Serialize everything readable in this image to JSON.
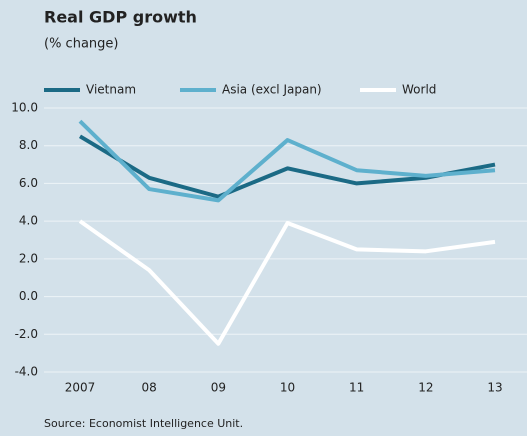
{
  "chart_data": {
    "type": "line",
    "title": "Real GDP growth",
    "subtitle": "(% change)",
    "source": "Source: Economist Intelligence Unit.",
    "categories": [
      "2007",
      "08",
      "09",
      "10",
      "11",
      "12",
      "13"
    ],
    "series": [
      {
        "name": "Vietnam",
        "color": "#1b6a85",
        "values": [
          8.5,
          6.3,
          5.3,
          6.8,
          6.0,
          6.3,
          7.0
        ]
      },
      {
        "name": "Asia (excl Japan)",
        "color": "#5eb0cd",
        "values": [
          9.3,
          5.7,
          5.1,
          8.3,
          6.7,
          6.4,
          6.7
        ]
      },
      {
        "name": "World",
        "color": "#ffffff",
        "values": [
          4.0,
          1.4,
          -2.5,
          3.9,
          2.5,
          2.4,
          2.9
        ]
      }
    ],
    "ylim": [
      -4,
      10
    ],
    "yticks": [
      {
        "value": -4,
        "label": "-4.0"
      },
      {
        "value": -2,
        "label": "-2.0"
      },
      {
        "value": 0,
        "label": "0.0"
      },
      {
        "value": 2,
        "label": "2.0"
      },
      {
        "value": 4,
        "label": "4.0"
      },
      {
        "value": 6,
        "label": "6.0"
      },
      {
        "value": 8,
        "label": "8.0"
      },
      {
        "value": 10,
        "label": "10.0"
      }
    ],
    "grid": true,
    "legend": "top"
  }
}
